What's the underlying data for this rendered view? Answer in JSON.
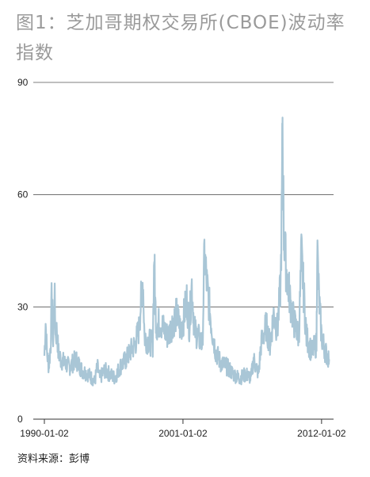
{
  "title": "图1：芝加哥期权交易所(CBOE)波动率指数",
  "source": "资料来源：彭博",
  "chart_data": {
    "type": "line",
    "title": "图1：芝加哥期权交易所(CBOE)波动率指数",
    "xlabel": "",
    "ylabel": "",
    "ylim": [
      0,
      90
    ],
    "yticks": [
      0,
      30,
      60,
      90
    ],
    "ytick_labels": [
      "0",
      "30",
      "60",
      "90"
    ],
    "xlim": [
      1990.0,
      2012.7
    ],
    "xticks": [
      1990.0,
      2001.0,
      2012.0
    ],
    "xtick_labels": [
      "1990-01-02",
      "2001-01-02",
      "2012-01-02"
    ],
    "grid": "horizontal",
    "color": "#a9c6d6",
    "series": [
      {
        "name": "",
        "x": [
          1990.0,
          1990.1,
          1990.2,
          1990.35,
          1990.5,
          1990.6,
          1990.7,
          1990.8,
          1990.9,
          1991.0,
          1991.1,
          1991.3,
          1991.6,
          1992.0,
          1992.5,
          1993.0,
          1993.5,
          1994.0,
          1994.2,
          1994.4,
          1994.8,
          1995.2,
          1995.6,
          1996.0,
          1996.5,
          1996.8,
          1997.2,
          1997.5,
          1997.82,
          1997.95,
          1998.2,
          1998.6,
          1998.72,
          1998.78,
          1998.9,
          1999.2,
          1999.5,
          1999.8,
          2000.2,
          2000.5,
          2000.8,
          2001.0,
          2001.3,
          2001.5,
          2001.7,
          2001.9,
          2002.2,
          2002.55,
          2002.7,
          2002.9,
          2003.1,
          2003.3,
          2003.6,
          2004.0,
          2004.5,
          2005.0,
          2005.5,
          2006.0,
          2006.4,
          2006.6,
          2007.0,
          2007.2,
          2007.6,
          2007.9,
          2008.2,
          2008.5,
          2008.75,
          2008.85,
          2008.9,
          2009.0,
          2009.2,
          2009.5,
          2009.8,
          2010.2,
          2010.4,
          2010.8,
          2011.2,
          2011.6,
          2011.65,
          2011.8,
          2012.0,
          2012.3,
          2012.6
        ],
        "y": [
          17,
          26,
          18,
          14,
          20,
          35,
          20,
          34,
          22,
          24,
          18,
          16,
          15,
          14,
          16,
          13,
          12,
          10,
          14,
          11,
          13,
          12,
          11,
          14,
          16,
          18,
          20,
          24,
          38,
          22,
          21,
          20,
          44,
          32,
          25,
          26,
          24,
          22,
          26,
          28,
          24,
          26,
          32,
          25,
          36,
          24,
          22,
          20,
          44,
          36,
          30,
          24,
          18,
          15,
          14,
          12,
          11,
          12,
          11,
          16,
          12,
          20,
          25,
          20,
          28,
          24,
          36,
          58,
          80,
          50,
          40,
          32,
          26,
          22,
          44,
          22,
          18,
          20,
          46,
          32,
          22,
          18,
          16
        ]
      }
    ]
  }
}
